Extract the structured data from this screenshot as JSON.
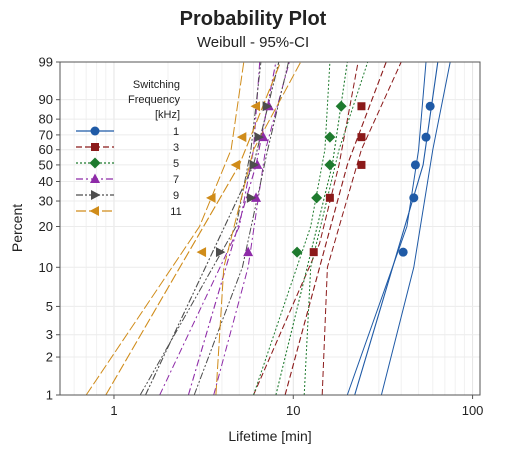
{
  "chart_data": {
    "type": "scatter",
    "title": "Probability Plot",
    "subtitle": "Weibull - 95%-CI",
    "xlabel": "Lifetime [min]",
    "ylabel": "Percent",
    "x_scale": "log",
    "y_scale": "weibull",
    "xlim": [
      0.5,
      110
    ],
    "ylim": [
      1,
      99
    ],
    "x_ticks": [
      1,
      10,
      100
    ],
    "y_ticks": [
      1,
      2,
      3,
      5,
      10,
      20,
      30,
      40,
      50,
      60,
      70,
      80,
      90,
      99
    ],
    "grid": true,
    "legend_position": "top-left",
    "legend_title": "Switching Frequency [kHz]",
    "legend_title_lines": [
      "Switching",
      "Frequency",
      "[kHz]"
    ],
    "series": [
      {
        "name": "1",
        "color": "#1f5aa6",
        "marker": "circle",
        "line_style": "solid",
        "points": [
          [
            41,
            13
          ],
          [
            47,
            31.5
          ],
          [
            48,
            50
          ],
          [
            55,
            68.5
          ],
          [
            58,
            87
          ]
        ],
        "fit": [
          [
            22,
            1
          ],
          [
            53,
            50
          ],
          [
            64,
            99
          ]
        ],
        "ci_lower": [
          [
            20,
            1
          ],
          [
            43,
            20
          ],
          [
            50,
            60
          ],
          [
            55,
            99
          ]
        ],
        "ci_upper": [
          [
            31,
            1
          ],
          [
            47,
            10
          ],
          [
            60,
            60
          ],
          [
            75,
            99
          ]
        ]
      },
      {
        "name": "3",
        "color": "#8b1a1a",
        "marker": "square",
        "line_style": "dashed",
        "points": [
          [
            13,
            13
          ],
          [
            16,
            31.5
          ],
          [
            24,
            50
          ],
          [
            24,
            68.5
          ],
          [
            24,
            87
          ]
        ],
        "fit": [
          [
            9,
            1
          ],
          [
            20,
            50
          ],
          [
            33,
            99
          ]
        ],
        "ci_lower": [
          [
            6,
            1
          ],
          [
            14,
            15
          ],
          [
            18,
            50
          ],
          [
            23,
            99
          ]
        ],
        "ci_upper": [
          [
            14.5,
            1
          ],
          [
            15.5,
            10
          ],
          [
            24,
            60
          ],
          [
            40,
            99
          ]
        ]
      },
      {
        "name": "5",
        "color": "#1e7a2e",
        "marker": "diamond",
        "line_style": "dotted",
        "points": [
          [
            10.5,
            13
          ],
          [
            13.5,
            31.5
          ],
          [
            16,
            50
          ],
          [
            16,
            68.5
          ],
          [
            18.5,
            87
          ]
        ],
        "fit": [
          [
            8,
            1
          ],
          [
            16.5,
            50
          ],
          [
            20,
            99
          ]
        ],
        "ci_lower": [
          [
            6,
            1
          ],
          [
            12.5,
            20
          ],
          [
            15,
            60
          ],
          [
            16,
            99
          ]
        ],
        "ci_upper": [
          [
            11.5,
            1
          ],
          [
            12.5,
            10
          ],
          [
            18,
            60
          ],
          [
            26,
            99
          ]
        ]
      },
      {
        "name": "7",
        "color": "#8e2ba8",
        "marker": "triangle-up",
        "line_style": "dashdot",
        "points": [
          [
            5.6,
            13
          ],
          [
            6.2,
            31.5
          ],
          [
            6.3,
            50
          ],
          [
            6.8,
            68.5
          ],
          [
            7.3,
            87
          ]
        ],
        "fit": [
          [
            2.6,
            1
          ],
          [
            6.2,
            50
          ],
          [
            8,
            99
          ]
        ],
        "ci_lower": [
          [
            1.8,
            1
          ],
          [
            5,
            20
          ],
          [
            6,
            60
          ],
          [
            6.5,
            99
          ]
        ],
        "ci_upper": [
          [
            3.6,
            1
          ],
          [
            5.6,
            10
          ],
          [
            7,
            60
          ],
          [
            9.5,
            99
          ]
        ]
      },
      {
        "name": "9",
        "color": "#4d4d4d",
        "marker": "triangle-right",
        "line_style": "dashdotdot",
        "points": [
          [
            3.9,
            13
          ],
          [
            5.8,
            31.5
          ],
          [
            6.0,
            50
          ],
          [
            6.4,
            68.5
          ],
          [
            7.1,
            87
          ]
        ],
        "fit": [
          [
            1.5,
            1
          ],
          [
            6.0,
            50
          ],
          [
            8.3,
            99
          ]
        ],
        "ci_lower": [
          [
            1.4,
            1
          ],
          [
            4.8,
            20
          ],
          [
            5.8,
            60
          ],
          [
            6.6,
            99
          ]
        ],
        "ci_upper": [
          [
            2.8,
            1
          ],
          [
            5.2,
            10
          ],
          [
            7.2,
            60
          ],
          [
            9.4,
            99
          ]
        ]
      },
      {
        "name": "11",
        "color": "#d08c1a",
        "marker": "triangle-left",
        "line_style": "longdash",
        "points": [
          [
            3.1,
            13
          ],
          [
            3.5,
            31.5
          ],
          [
            4.8,
            50
          ],
          [
            5.2,
            68.5
          ],
          [
            6.2,
            87
          ]
        ],
        "fit": [
          [
            0.9,
            1
          ],
          [
            5.0,
            50
          ],
          [
            8.5,
            99
          ]
        ],
        "ci_lower": [
          [
            0.7,
            1
          ],
          [
            3,
            20
          ],
          [
            4.5,
            60
          ],
          [
            5.3,
            99
          ]
        ],
        "ci_upper": [
          [
            3.7,
            1
          ],
          [
            4.1,
            10
          ],
          [
            6,
            60
          ],
          [
            11,
            99
          ]
        ]
      }
    ]
  }
}
